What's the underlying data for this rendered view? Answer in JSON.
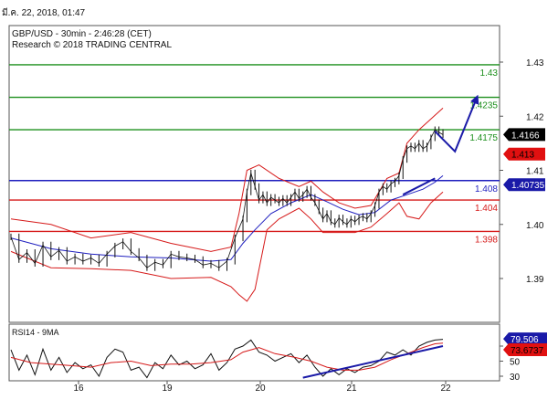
{
  "header": {
    "timestamp": "มี.ค. 22, 2018, 01:47"
  },
  "chart_data": [
    {
      "type": "line",
      "title": "GBP/USD - 30min - 2:46:28 (CET)",
      "subtitle": "Research © 2018 TRADING CENTRAL",
      "x_ticks": [
        "16",
        "19",
        "20",
        "21",
        "22"
      ],
      "y_ticks": [
        "1.43",
        "1.42",
        "1.41",
        "1.40",
        "1.39"
      ],
      "ylim": [
        1.385,
        1.441
      ],
      "levels": [
        {
          "label": "1.43",
          "value": 1.4295,
          "color": "#1c8f1c"
        },
        {
          "label": "1.4235",
          "value": 1.4235,
          "color": "#1c8f1c"
        },
        {
          "label": "1.4175",
          "value": 1.4175,
          "color": "#1c8f1c"
        },
        {
          "label": "1.408",
          "value": 1.4081,
          "color": "#1f1fbf"
        },
        {
          "label": "1.404",
          "value": 1.4045,
          "color": "#d61a1a"
        },
        {
          "label": "1.398",
          "value": 1.3987,
          "color": "#d61a1a"
        }
      ],
      "price_tags": [
        {
          "label": "1.4166",
          "value": 1.4166,
          "bg": "#000000",
          "fg": "#ffffff"
        },
        {
          "label": "1.413",
          "value": 1.413,
          "bg": "#e01010",
          "fg": "#000000"
        },
        {
          "label": "1.40735",
          "value": 1.40735,
          "bg": "#1a1aa8",
          "fg": "#ffffff"
        }
      ],
      "price_series": [
        [
          0,
          1.3977
        ],
        [
          4,
          1.3935
        ],
        [
          8,
          1.3948
        ],
        [
          12,
          1.3928
        ],
        [
          16,
          1.3962
        ],
        [
          20,
          1.394
        ],
        [
          24,
          1.3952
        ],
        [
          28,
          1.3932
        ],
        [
          32,
          1.394
        ],
        [
          36,
          1.3932
        ],
        [
          40,
          1.3938
        ],
        [
          44,
          1.3928
        ],
        [
          48,
          1.3945
        ],
        [
          52,
          1.396
        ],
        [
          56,
          1.3968
        ],
        [
          60,
          1.395
        ],
        [
          64,
          1.3938
        ],
        [
          68,
          1.392
        ],
        [
          72,
          1.393
        ],
        [
          76,
          1.3925
        ],
        [
          80,
          1.3945
        ],
        [
          84,
          1.394
        ],
        [
          88,
          1.3938
        ],
        [
          92,
          1.3935
        ],
        [
          96,
          1.3925
        ],
        [
          100,
          1.3928
        ],
        [
          104,
          1.392
        ],
        [
          108,
          1.3932
        ],
        [
          112,
          1.3975
        ],
        [
          116,
          1.401
        ],
        [
          118,
          1.406
        ],
        [
          120,
          1.4095
        ],
        [
          122,
          1.407
        ],
        [
          124,
          1.4045
        ],
        [
          126,
          1.4055
        ],
        [
          128,
          1.404
        ],
        [
          130,
          1.405
        ],
        [
          132,
          1.4045
        ],
        [
          134,
          1.404
        ],
        [
          136,
          1.4048
        ],
        [
          138,
          1.404
        ],
        [
          140,
          1.405
        ],
        [
          142,
          1.406
        ],
        [
          144,
          1.4048
        ],
        [
          146,
          1.4055
        ],
        [
          148,
          1.4065
        ],
        [
          150,
          1.405
        ],
        [
          152,
          1.404
        ],
        [
          154,
          1.4025
        ],
        [
          156,
          1.401
        ],
        [
          158,
          1.402
        ],
        [
          160,
          1.4005
        ],
        [
          162,
          1.4
        ],
        [
          164,
          1.4012
        ],
        [
          166,
          1.4005
        ],
        [
          168,
          1.4
        ],
        [
          170,
          1.401
        ],
        [
          172,
          1.4005
        ],
        [
          174,
          1.4012
        ],
        [
          176,
          1.4015
        ],
        [
          178,
          1.401
        ],
        [
          180,
          1.402
        ],
        [
          182,
          1.4035
        ],
        [
          184,
          1.406
        ],
        [
          186,
          1.407
        ],
        [
          188,
          1.4065
        ],
        [
          190,
          1.4075
        ],
        [
          192,
          1.408
        ],
        [
          194,
          1.409
        ],
        [
          196,
          1.412
        ],
        [
          198,
          1.414
        ],
        [
          200,
          1.4145
        ],
        [
          202,
          1.414
        ],
        [
          204,
          1.415
        ],
        [
          206,
          1.414
        ],
        [
          208,
          1.4145
        ],
        [
          210,
          1.416
        ],
        [
          212,
          1.4175
        ],
        [
          214,
          1.417
        ],
        [
          216,
          1.4166
        ]
      ],
      "bb_upper": [
        [
          0,
          1.401
        ],
        [
          20,
          1.4
        ],
        [
          40,
          1.3975
        ],
        [
          60,
          1.3985
        ],
        [
          80,
          1.3965
        ],
        [
          100,
          1.395
        ],
        [
          110,
          1.3958
        ],
        [
          114,
          1.402
        ],
        [
          118,
          1.41
        ],
        [
          124,
          1.411
        ],
        [
          134,
          1.4085
        ],
        [
          144,
          1.407
        ],
        [
          150,
          1.408
        ],
        [
          156,
          1.406
        ],
        [
          164,
          1.404
        ],
        [
          172,
          1.403
        ],
        [
          180,
          1.4035
        ],
        [
          188,
          1.4085
        ],
        [
          194,
          1.4095
        ],
        [
          198,
          1.415
        ],
        [
          204,
          1.4175
        ],
        [
          210,
          1.4195
        ],
        [
          216,
          1.4215
        ]
      ],
      "bb_lower": [
        [
          0,
          1.395
        ],
        [
          20,
          1.392
        ],
        [
          40,
          1.3918
        ],
        [
          60,
          1.3915
        ],
        [
          80,
          1.39
        ],
        [
          100,
          1.3902
        ],
        [
          110,
          1.3885
        ],
        [
          114,
          1.387
        ],
        [
          118,
          1.3858
        ],
        [
          122,
          1.388
        ],
        [
          128,
          1.399
        ],
        [
          134,
          1.401
        ],
        [
          144,
          1.403
        ],
        [
          150,
          1.401
        ],
        [
          156,
          1.3985
        ],
        [
          164,
          1.3985
        ],
        [
          172,
          1.3985
        ],
        [
          180,
          1.3995
        ],
        [
          188,
          1.402
        ],
        [
          194,
          1.404
        ],
        [
          198,
          1.4015
        ],
        [
          204,
          1.401
        ],
        [
          210,
          1.404
        ],
        [
          216,
          1.406
        ]
      ],
      "ma_series": [
        [
          0,
          1.3975
        ],
        [
          20,
          1.3955
        ],
        [
          40,
          1.3945
        ],
        [
          60,
          1.394
        ],
        [
          80,
          1.3938
        ],
        [
          100,
          1.3932
        ],
        [
          110,
          1.3935
        ],
        [
          116,
          1.3965
        ],
        [
          122,
          1.399
        ],
        [
          130,
          1.402
        ],
        [
          140,
          1.404
        ],
        [
          150,
          1.4055
        ],
        [
          158,
          1.4042
        ],
        [
          166,
          1.4028
        ],
        [
          174,
          1.4018
        ],
        [
          182,
          1.4022
        ],
        [
          190,
          1.4045
        ],
        [
          198,
          1.4055
        ],
        [
          206,
          1.4065
        ],
        [
          212,
          1.4078
        ],
        [
          216,
          1.409
        ]
      ],
      "trend_line": [
        [
          196,
          1.4055
        ],
        [
          212,
          1.4085
        ]
      ],
      "forecast_arrow": [
        [
          212,
          1.4172
        ],
        [
          222,
          1.4135
        ],
        [
          233,
          1.4235
        ]
      ]
    },
    {
      "type": "line",
      "title": "RSI14 - 9MA",
      "y_ticks": [
        "70",
        "50",
        "30"
      ],
      "ylim": [
        20,
        95
      ],
      "value_tags": [
        {
          "label": "79.506",
          "value": 79.506,
          "bg": "#1a1aa8",
          "fg": "#ffffff"
        },
        {
          "label": "73.6737",
          "value": 73.6737,
          "bg": "#e01010",
          "fg": "#000000"
        }
      ],
      "rsi_series": [
        [
          0,
          65
        ],
        [
          4,
          38
        ],
        [
          8,
          58
        ],
        [
          12,
          32
        ],
        [
          16,
          66
        ],
        [
          20,
          38
        ],
        [
          24,
          55
        ],
        [
          28,
          35
        ],
        [
          32,
          48
        ],
        [
          36,
          40
        ],
        [
          40,
          45
        ],
        [
          44,
          30
        ],
        [
          48,
          55
        ],
        [
          52,
          66
        ],
        [
          56,
          62
        ],
        [
          60,
          38
        ],
        [
          64,
          42
        ],
        [
          68,
          28
        ],
        [
          72,
          48
        ],
        [
          76,
          40
        ],
        [
          80,
          58
        ],
        [
          84,
          45
        ],
        [
          88,
          50
        ],
        [
          92,
          40
        ],
        [
          96,
          45
        ],
        [
          100,
          60
        ],
        [
          104,
          38
        ],
        [
          108,
          48
        ],
        [
          112,
          66
        ],
        [
          116,
          70
        ],
        [
          120,
          78
        ],
        [
          124,
          62
        ],
        [
          128,
          58
        ],
        [
          132,
          50
        ],
        [
          136,
          55
        ],
        [
          140,
          60
        ],
        [
          144,
          48
        ],
        [
          148,
          58
        ],
        [
          152,
          42
        ],
        [
          156,
          30
        ],
        [
          160,
          40
        ],
        [
          164,
          32
        ],
        [
          168,
          40
        ],
        [
          172,
          35
        ],
        [
          176,
          42
        ],
        [
          180,
          44
        ],
        [
          184,
          50
        ],
        [
          188,
          62
        ],
        [
          192,
          58
        ],
        [
          196,
          65
        ],
        [
          200,
          58
        ],
        [
          204,
          70
        ],
        [
          208,
          75
        ],
        [
          212,
          78
        ],
        [
          216,
          79
        ]
      ],
      "rsi_ma_series": [
        [
          0,
          55
        ],
        [
          10,
          48
        ],
        [
          20,
          46
        ],
        [
          30,
          44
        ],
        [
          40,
          42
        ],
        [
          50,
          48
        ],
        [
          60,
          50
        ],
        [
          70,
          44
        ],
        [
          80,
          46
        ],
        [
          90,
          46
        ],
        [
          100,
          48
        ],
        [
          110,
          52
        ],
        [
          116,
          62
        ],
        [
          124,
          68
        ],
        [
          132,
          60
        ],
        [
          142,
          55
        ],
        [
          150,
          50
        ],
        [
          158,
          42
        ],
        [
          166,
          38
        ],
        [
          174,
          38
        ],
        [
          182,
          42
        ],
        [
          190,
          52
        ],
        [
          198,
          60
        ],
        [
          206,
          68
        ],
        [
          212,
          73
        ],
        [
          216,
          74
        ]
      ],
      "trend_line": [
        [
          146,
          28
        ],
        [
          216,
          70
        ]
      ]
    }
  ]
}
